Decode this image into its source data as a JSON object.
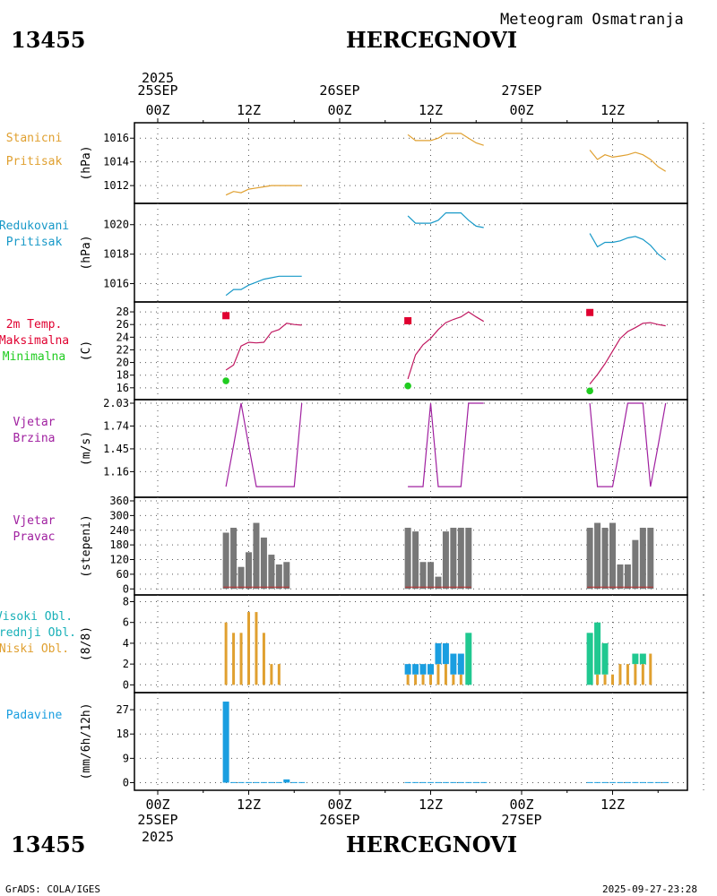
{
  "header": {
    "station_id": "13455",
    "station_name": "HERCEGNOVI",
    "subtitle": "Meteogram Osmatranja"
  },
  "footer": {
    "credit": "GrADS: COLA/IGES",
    "timestamp": "2025-09-27-23:28"
  },
  "colors": {
    "pressure": "#e0a030",
    "reduced": "#1899c8",
    "tmax": "#e00030",
    "tmin": "#20cc20",
    "wind": "#a020a0",
    "dir_bar": "#787878",
    "cloud_high": "#18b0b8",
    "cloud_mid": "#1a9ee0",
    "cloud_low": "#e0a030",
    "cloud_green": "#20c890",
    "precip": "#1a9ee0"
  },
  "time_axis": {
    "top_year": "2025",
    "top_labels": [
      "25SEP",
      "00Z",
      "12Z",
      "26SEP",
      "00Z",
      "12Z",
      "27SEP",
      "00Z",
      "12Z"
    ],
    "bottom_labels": [
      "00Z",
      "25SEP",
      "2025",
      "12Z",
      "00Z",
      "26SEP",
      "12Z",
      "00Z",
      "27SEP",
      "12Z"
    ]
  },
  "chart_data": [
    {
      "type": "line",
      "panel": "stanicni",
      "title": [
        "Stanicni",
        "Pritisak"
      ],
      "ylabel": "(hPa)",
      "ylim": [
        1010.8,
        1017.0
      ],
      "yticks": [
        1012,
        1014,
        1016
      ],
      "ytick_labels": [
        "1012",
        "1014",
        "1016"
      ],
      "series": [
        {
          "name": "Stanicni Pritisak",
          "x": [
            9,
            10,
            11,
            12,
            13,
            14,
            15,
            16,
            17,
            18,
            19
          ],
          "y": [
            1011.2,
            1011.5,
            1011.4,
            1011.7,
            1011.8,
            1011.9,
            1012.0,
            1012.0,
            1012.0,
            1012.0,
            1012.0
          ]
        },
        {
          "name": "Stanicni Pritisak",
          "x": [
            33,
            34,
            35,
            36,
            37,
            38,
            39,
            40,
            41,
            42,
            43
          ],
          "y": [
            1016.3,
            1015.8,
            1015.8,
            1015.8,
            1016.0,
            1016.4,
            1016.4,
            1016.4,
            1016.0,
            1015.6,
            1015.4
          ]
        },
        {
          "name": "Stanicni Pritisak",
          "x": [
            57,
            58,
            59,
            60,
            61,
            62,
            63,
            64,
            65,
            66,
            67
          ],
          "y": [
            1015.0,
            1014.2,
            1014.6,
            1014.4,
            1014.5,
            1014.6,
            1014.8,
            1014.6,
            1014.2,
            1013.6,
            1013.2
          ]
        }
      ]
    },
    {
      "type": "line",
      "panel": "redukovani",
      "title": [
        "Redukovani",
        "Pritisak"
      ],
      "ylabel": "(hPa)",
      "ylim": [
        1015.0,
        1021.2
      ],
      "yticks": [
        1016,
        1018,
        1020
      ],
      "ytick_labels": [
        "1016",
        "1018",
        "1020"
      ],
      "series": [
        {
          "name": "Redukovani Pritisak",
          "x": [
            9,
            10,
            11,
            12,
            13,
            14,
            15,
            16,
            17,
            18,
            19
          ],
          "y": [
            1015.2,
            1015.6,
            1015.6,
            1015.9,
            1016.1,
            1016.3,
            1016.4,
            1016.5,
            1016.5,
            1016.5,
            1016.5
          ]
        },
        {
          "name": "Redukovani Pritisak",
          "x": [
            33,
            34,
            35,
            36,
            37,
            38,
            39,
            40,
            41,
            42,
            43
          ],
          "y": [
            1020.6,
            1020.1,
            1020.1,
            1020.1,
            1020.3,
            1020.8,
            1020.8,
            1020.8,
            1020.3,
            1019.9,
            1019.8
          ]
        },
        {
          "name": "Redukovani Pritisak",
          "x": [
            57,
            58,
            59,
            60,
            61,
            62,
            63,
            64,
            65,
            66,
            67
          ],
          "y": [
            1019.4,
            1018.5,
            1018.8,
            1018.8,
            1018.9,
            1019.1,
            1019.2,
            1019.0,
            1018.6,
            1018.0,
            1017.6
          ]
        }
      ]
    },
    {
      "type": "line",
      "panel": "temperatura",
      "title": [
        "2m Temp.",
        "Maksimalna",
        "Minimalna"
      ],
      "ylabel": "(C)",
      "ylim": [
        14.7,
        29.0
      ],
      "yticks": [
        16,
        18,
        20,
        22,
        24,
        26,
        28
      ],
      "ytick_labels": [
        "16",
        "18",
        "20",
        "22",
        "24",
        "26",
        "28"
      ],
      "series": [
        {
          "name": "2m Temp.",
          "x": [
            9,
            10,
            11,
            12,
            13,
            14,
            15,
            16,
            17,
            18,
            19
          ],
          "y": [
            18.8,
            19.6,
            22.6,
            23.2,
            23.1,
            23.2,
            24.8,
            25.2,
            26.2,
            26.0,
            25.9
          ]
        },
        {
          "name": "2m Temp.",
          "x": [
            33,
            34,
            35,
            36,
            37,
            38,
            39,
            40,
            41,
            42,
            43
          ],
          "y": [
            17.4,
            21.2,
            22.8,
            23.8,
            25.2,
            26.3,
            26.8,
            27.2,
            28.0,
            27.2,
            26.5
          ]
        },
        {
          "name": "2m Temp.",
          "x": [
            57,
            58,
            59,
            60,
            61,
            62,
            63,
            64,
            65,
            66,
            67
          ],
          "y": [
            16.6,
            18.1,
            19.8,
            21.8,
            23.8,
            24.9,
            25.5,
            26.2,
            26.3,
            26.0,
            25.8
          ]
        }
      ],
      "maksimalna": {
        "x": [
          9,
          33,
          57
        ],
        "y": [
          27.4,
          26.6,
          27.9
        ]
      },
      "minimalna": {
        "x": [
          9,
          33,
          57
        ],
        "y": [
          17.1,
          16.3,
          15.5
        ]
      }
    },
    {
      "type": "line",
      "panel": "vjetar_brzina",
      "title": [
        "Vjetar",
        "Brzina"
      ],
      "ylabel": "(m/s)",
      "ylim": [
        0.88,
        2.03
      ],
      "yticks": [
        1.16,
        1.45,
        1.74,
        2.03
      ],
      "ytick_labels": [
        "1.16",
        "1.45",
        "1.74",
        "2.03"
      ],
      "series": [
        {
          "name": "Vjetar Brzina",
          "x": [
            9,
            10,
            11,
            12,
            13,
            14,
            15,
            16,
            17,
            18,
            19
          ],
          "y": [
            0.97,
            1.49,
            2.03,
            1.49,
            0.97,
            0.97,
            0.97,
            0.97,
            0.97,
            0.97,
            2.03
          ]
        },
        {
          "name": "Vjetar Brzina",
          "x": [
            33,
            34,
            35,
            36,
            37,
            38,
            39,
            40,
            41,
            42,
            43
          ],
          "y": [
            0.97,
            0.97,
            0.97,
            2.03,
            0.97,
            0.97,
            0.97,
            0.97,
            2.03,
            2.03,
            2.03
          ]
        },
        {
          "name": "Vjetar Brzina",
          "x": [
            57,
            58,
            59,
            60,
            61,
            62,
            63,
            64,
            65,
            66,
            67
          ],
          "y": [
            2.03,
            0.97,
            0.97,
            0.97,
            1.49,
            2.03,
            2.03,
            2.03,
            0.97,
            1.49,
            2.03
          ]
        }
      ]
    },
    {
      "type": "bar",
      "panel": "vjetar_pravac",
      "title": [
        "Vjetar",
        "Pravac"
      ],
      "ylabel": "(stepeni)",
      "ylim": [
        -10,
        360
      ],
      "yticks": [
        0,
        60,
        120,
        180,
        240,
        300,
        360
      ],
      "ytick_labels": [
        "0",
        "60",
        "120",
        "180",
        "240",
        "300",
        "360"
      ],
      "x": [
        9,
        10,
        11,
        12,
        13,
        14,
        15,
        16,
        17,
        33,
        34,
        35,
        36,
        37,
        38,
        39,
        40,
        41,
        57,
        58,
        59,
        60,
        61,
        62,
        63,
        64,
        65
      ],
      "values": [
        230,
        250,
        90,
        150,
        270,
        210,
        140,
        100,
        110,
        250,
        235,
        110,
        110,
        50,
        235,
        250,
        250,
        250,
        250,
        270,
        250,
        270,
        100,
        100,
        200,
        250,
        250
      ]
    },
    {
      "type": "bar",
      "panel": "oblacnost",
      "title": [
        "Visoki Obl.",
        "Srednji Obl.",
        "Niski Obl."
      ],
      "ylabel": "(8/8)",
      "ylim": [
        -0.4,
        8.3
      ],
      "yticks": [
        0,
        2,
        4,
        6,
        8
      ],
      "ytick_labels": [
        "0",
        "2",
        "4",
        "6",
        "8"
      ],
      "x": [
        9,
        10,
        11,
        12,
        13,
        14,
        15,
        16,
        17,
        33,
        34,
        35,
        36,
        37,
        38,
        39,
        40,
        41,
        57,
        58,
        59,
        60,
        61,
        62,
        63,
        64,
        65
      ],
      "series": [
        {
          "name": "Niski Obl.",
          "values": [
            6,
            5,
            5,
            7,
            7,
            5,
            2,
            2,
            0,
            1,
            1,
            1,
            1,
            2,
            2,
            1,
            1,
            0,
            0,
            1,
            1,
            1,
            2,
            2,
            2,
            2,
            3
          ]
        },
        {
          "name": "Srednji Obl.",
          "values": [
            0,
            0,
            0,
            0,
            0,
            0,
            0,
            0,
            0,
            1,
            1,
            1,
            1,
            2,
            2,
            2,
            2,
            0,
            0,
            0,
            0,
            0,
            0,
            0,
            0,
            0,
            0
          ]
        },
        {
          "name": "Visoki Obl.",
          "values": [
            0,
            0,
            0,
            0,
            0,
            0,
            0,
            0,
            0,
            0,
            0,
            0,
            0,
            0,
            0,
            0,
            0,
            5,
            5,
            5,
            3,
            0,
            0,
            0,
            1,
            1,
            0
          ]
        }
      ]
    },
    {
      "type": "bar",
      "panel": "padavine",
      "title": [
        "Padavine"
      ],
      "ylabel": "(mm/6h/12h)",
      "ylim": [
        -1.5,
        32
      ],
      "yticks": [
        0,
        9,
        18,
        27
      ],
      "ytick_labels": [
        "0",
        "9",
        "18",
        "27"
      ],
      "x": [
        9,
        10,
        11,
        12,
        13,
        14,
        15,
        16,
        17,
        18,
        19,
        33,
        34,
        35,
        36,
        37,
        38,
        39,
        40,
        41,
        42,
        43,
        57,
        58,
        59,
        60,
        61,
        62,
        63,
        64,
        65,
        66,
        67
      ],
      "values": [
        30,
        0.2,
        0.2,
        0.2,
        0.2,
        0.2,
        0.2,
        0.2,
        1.2,
        0.2,
        0.2,
        0.2,
        0.2,
        0.2,
        0.2,
        0.2,
        0.2,
        0.2,
        0.2,
        0.2,
        0.2,
        0.2,
        0.2,
        0.2,
        0.2,
        0.2,
        0.2,
        0.2,
        0.2,
        0.2,
        0.2,
        0.2,
        0.2
      ]
    }
  ]
}
